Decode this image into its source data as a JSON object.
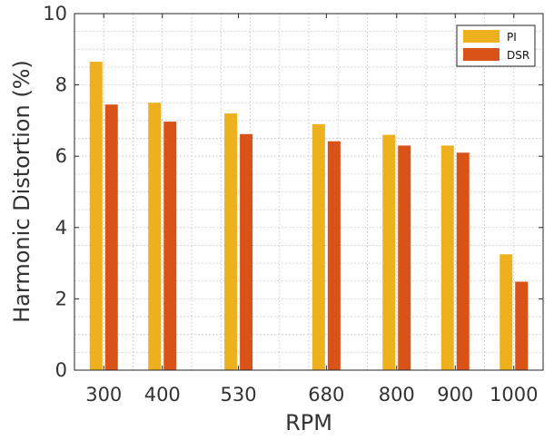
{
  "chart_data": {
    "type": "bar",
    "title": "",
    "xlabel": "RPM",
    "ylabel": "Harmonic Distortion (%)",
    "ylim": [
      0,
      10
    ],
    "yticks": [
      0,
      2,
      4,
      6,
      8,
      10
    ],
    "x": [
      300,
      400,
      530,
      680,
      800,
      900,
      1000
    ],
    "xtick_labels": [
      "300",
      "400",
      "530",
      "680",
      "800",
      "900",
      "1000"
    ],
    "xlim": [
      250,
      1050
    ],
    "grid": "major and minor (dotted)",
    "legend_position": "top-right",
    "series": [
      {
        "name": "PI",
        "color": "#EDB120",
        "values": [
          8.65,
          7.5,
          7.2,
          6.9,
          6.6,
          6.3,
          3.25
        ]
      },
      {
        "name": "DSR",
        "color": "#D95319",
        "values": [
          7.45,
          6.97,
          6.62,
          6.42,
          6.3,
          6.1,
          2.48
        ]
      }
    ]
  }
}
